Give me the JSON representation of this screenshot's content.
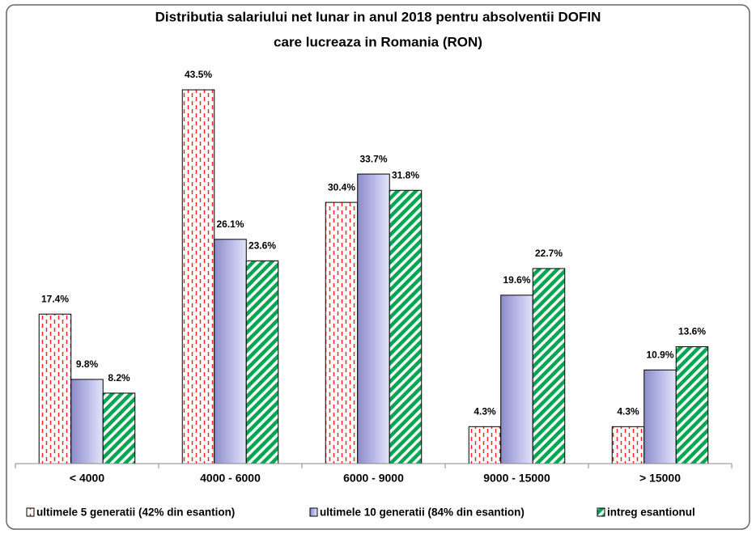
{
  "chart_data": {
    "type": "bar",
    "title": [
      "Distributia salariului net lunar in anul 2018 pentru absolventii DOFIN",
      "care lucreaza in Romania (RON)"
    ],
    "categories": [
      "< 4000",
      "4000 - 6000",
      "6000 - 9000",
      "9000 - 15000",
      "> 15000"
    ],
    "series": [
      {
        "name": "ultimele 5 generatii (42% din esantion)",
        "color": "#ff2020",
        "pattern": "dashed-vertical",
        "values": [
          17.4,
          43.5,
          30.4,
          4.3,
          4.3
        ],
        "value_labels": [
          "17.4%",
          "43.5%",
          "30.4%",
          "4.3%",
          "4.3%"
        ]
      },
      {
        "name": "ultimele 10 generatii (84% din esantion)",
        "color": "#b8b8e8",
        "pattern": "gradient",
        "values": [
          9.8,
          26.1,
          33.7,
          19.6,
          10.9
        ],
        "value_labels": [
          "9.8%",
          "26.1%",
          "33.7%",
          "19.6%",
          "10.9%"
        ]
      },
      {
        "name": "intreg esantionul",
        "color": "#00a650",
        "pattern": "diagonal",
        "values": [
          8.2,
          23.6,
          31.8,
          22.7,
          13.6
        ],
        "value_labels": [
          "8.2%",
          "23.6%",
          "31.8%",
          "22.7%",
          "13.6%"
        ]
      }
    ],
    "legend": "bottom"
  }
}
